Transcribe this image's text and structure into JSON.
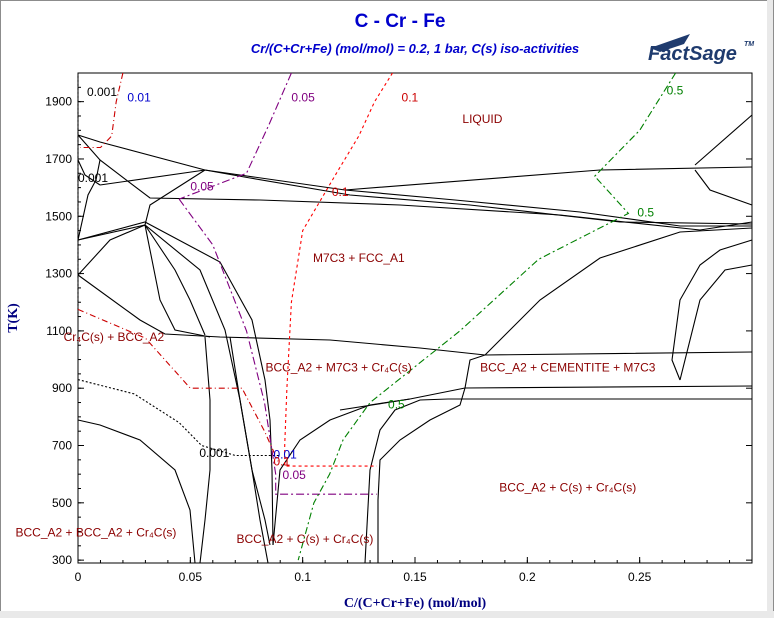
{
  "chart_data": {
    "type": "line",
    "title": "C - Cr - Fe",
    "subtitle": "Cr/(C+Cr+Fe) (mol/mol)  = 0.2,  1 bar, C(s) iso-activities",
    "logo": "FactSage",
    "logo_tm": "TM",
    "xlabel": "C/(C+Cr+Fe) (mol/mol)",
    "ylabel": "T(K)",
    "xlim": [
      0,
      0.3
    ],
    "ylim": [
      290,
      2000
    ],
    "x_tick_labels": [
      "0",
      "0.05",
      "0.1",
      "0.15",
      "0.2",
      "0.25"
    ],
    "y_tick_labels": [
      "300",
      "500",
      "700",
      "900",
      "1100",
      "1300",
      "1500",
      "1700",
      "1900"
    ],
    "grid": false,
    "phase_labels": [
      {
        "text": "LIQUID",
        "x": 0.18,
        "y": 1825
      },
      {
        "text": "M7C3 + FCC_A1",
        "x": 0.125,
        "y": 1340
      },
      {
        "text": "Cr₄C(s) + BCC_A2",
        "x": 0.016,
        "y": 1065
      },
      {
        "text": "BCC_A2 + M7C3 + Cr₄C(s)",
        "x": 0.116,
        "y": 958
      },
      {
        "text": "BCC_A2 + CEMENTITE + M7C3",
        "x": 0.218,
        "y": 958
      },
      {
        "text": "BCC_A2 + C(s) + Cr₄C(s)",
        "x": 0.218,
        "y": 540
      },
      {
        "text": "BCC_A2 + BCC_A2 + Cr₄C(s)",
        "x": 0.008,
        "y": 383
      },
      {
        "text": "BCC_A2 + C(s) + Cr₄C(s)",
        "x": 0.101,
        "y": 360
      }
    ],
    "iso_activity_lines": [
      {
        "activity": "0.001",
        "color": "#000000",
        "points": [
          [
            0.0,
            1990
          ],
          [
            0.0,
            1750
          ],
          [
            0.0,
            1620
          ],
          [
            0.0,
            1150
          ]
        ]
      },
      {
        "activity": "0.001",
        "color": "#000000",
        "points": [
          [
            0.0,
            930
          ],
          [
            0.025,
            880
          ],
          [
            0.045,
            780
          ],
          [
            0.055,
            700
          ],
          [
            0.07,
            665
          ],
          [
            0.08,
            665
          ],
          [
            0.09,
            665
          ]
        ]
      },
      {
        "activity": "0.01",
        "color": "#cc0000",
        "points": [
          [
            0.02,
            2000
          ],
          [
            0.017,
            1900
          ],
          [
            0.015,
            1780
          ],
          [
            0.01,
            1740
          ],
          [
            0.001,
            1740
          ]
        ]
      },
      {
        "activity": "0.01",
        "color": "#cc0000",
        "points": [
          [
            0.0,
            1175
          ],
          [
            0.03,
            1075
          ],
          [
            0.05,
            900
          ],
          [
            0.073,
            900
          ],
          [
            0.083,
            750
          ],
          [
            0.089,
            645
          ]
        ]
      },
      {
        "activity": "0.05",
        "color": "#800080",
        "points": [
          [
            0.095,
            2000
          ],
          [
            0.085,
            1820
          ],
          [
            0.075,
            1650
          ],
          [
            0.045,
            1560
          ]
        ]
      },
      {
        "activity": "0.05",
        "color": "#800080",
        "points": [
          [
            0.045,
            1560
          ],
          [
            0.06,
            1400
          ],
          [
            0.075,
            1100
          ],
          [
            0.083,
            850
          ],
          [
            0.088,
            600
          ],
          [
            0.088,
            530
          ],
          [
            0.133,
            530
          ]
        ]
      },
      {
        "activity": "0.1",
        "color": "#ff0000",
        "points": [
          [
            0.14,
            2000
          ],
          [
            0.132,
            1900
          ],
          [
            0.125,
            1780
          ],
          [
            0.115,
            1650
          ],
          [
            0.1,
            1450
          ],
          [
            0.095,
            1200
          ],
          [
            0.093,
            900
          ],
          [
            0.092,
            700
          ],
          [
            0.092,
            628
          ],
          [
            0.133,
            628
          ]
        ]
      },
      {
        "activity": "0.5",
        "color": "#008000",
        "points": [
          [
            0.266,
            2000
          ],
          [
            0.25,
            1800
          ],
          [
            0.23,
            1640
          ],
          [
            0.245,
            1510
          ],
          [
            0.205,
            1350
          ],
          [
            0.17,
            1100
          ],
          [
            0.13,
            850
          ],
          [
            0.118,
            720
          ],
          [
            0.112,
            600
          ],
          [
            0.105,
            500
          ],
          [
            0.098,
            300
          ]
        ]
      }
    ],
    "iso_labels": [
      {
        "text": "0.001",
        "x": 0.004,
        "y": 1920,
        "color": "#000000"
      },
      {
        "text": "0.01",
        "x": 0.022,
        "y": 1900,
        "color": "#0000cc"
      },
      {
        "text": "0.05",
        "x": 0.095,
        "y": 1900,
        "color": "#800080"
      },
      {
        "text": "0.1",
        "x": 0.144,
        "y": 1900,
        "color": "#cc0000"
      },
      {
        "text": "0.5",
        "x": 0.262,
        "y": 1925,
        "color": "#008000"
      },
      {
        "text": "0.001",
        "x": 0.0,
        "y": 1620,
        "color": "#000000"
      },
      {
        "text": "0.05",
        "x": 0.05,
        "y": 1590,
        "color": "#800080"
      },
      {
        "text": "0.1",
        "x": 0.113,
        "y": 1570,
        "color": "#cc0000"
      },
      {
        "text": "0.5",
        "x": 0.249,
        "y": 1500,
        "color": "#008000"
      },
      {
        "text": "0.5",
        "x": 0.138,
        "y": 830,
        "color": "#008000"
      },
      {
        "text": "0.001",
        "x": 0.054,
        "y": 660,
        "color": "#000000"
      },
      {
        "text": "0.01",
        "x": 0.087,
        "y": 655,
        "color": "#0000cc"
      },
      {
        "text": "0.1",
        "x": 0.087,
        "y": 630,
        "color": "#cc0000"
      },
      {
        "text": "0.05",
        "x": 0.091,
        "y": 583,
        "color": "#800080"
      }
    ]
  }
}
